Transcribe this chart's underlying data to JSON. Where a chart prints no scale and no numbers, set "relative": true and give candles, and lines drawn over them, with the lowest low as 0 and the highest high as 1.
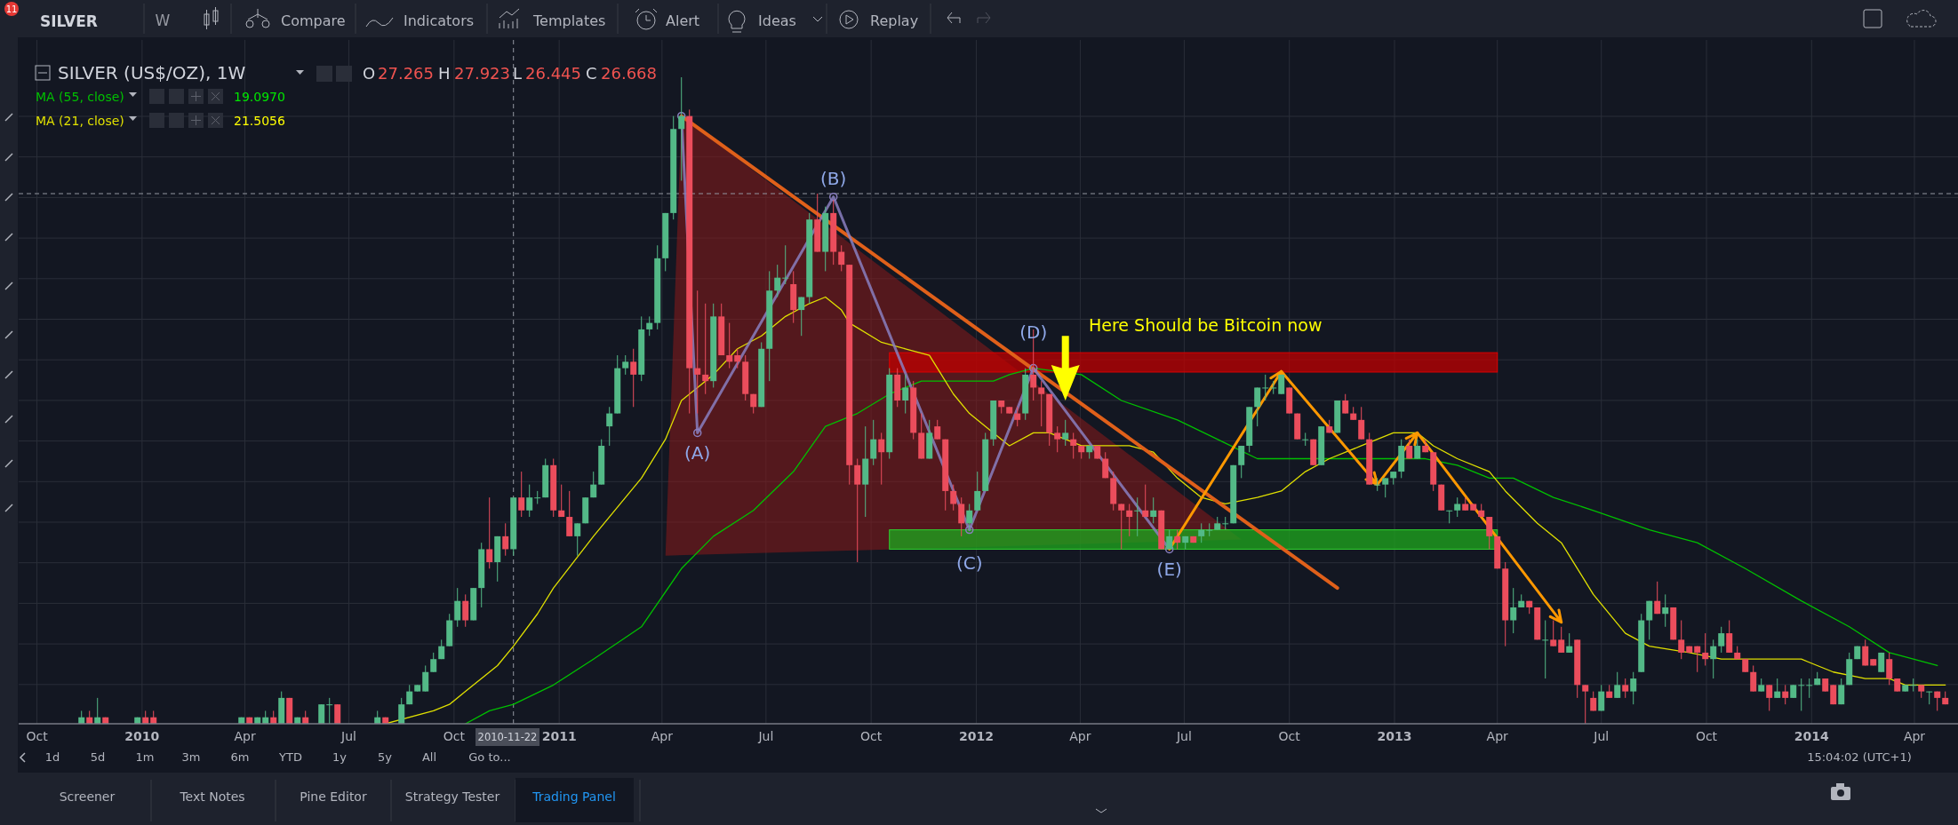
{
  "chart_data": {
    "type": "candlestick",
    "relative": true,
    "grid": true,
    "legend": "top left",
    "xlim": [
      "2009-09-15",
      "2014-05-13"
    ],
    "xticks": [
      {
        "value": "2009-10-01",
        "label": "Oct"
      },
      {
        "value": "2010-01-01",
        "label": "2010"
      },
      {
        "value": "2010-04-01",
        "label": "Apr"
      },
      {
        "value": "2010-07-01",
        "label": "Jul"
      },
      {
        "value": "2010-10-01",
        "label": "Oct"
      },
      {
        "value": "2011-01-01",
        "label": "2011"
      },
      {
        "value": "2011-04-01",
        "label": "Apr"
      },
      {
        "value": "2011-07-01",
        "label": "Jul"
      },
      {
        "value": "2011-10-01",
        "label": "Oct"
      },
      {
        "value": "2012-01-01",
        "label": "2012"
      },
      {
        "value": "2012-04-01",
        "label": "Apr"
      },
      {
        "value": "2012-07-01",
        "label": "Jul"
      },
      {
        "value": "2012-10-01",
        "label": "Oct"
      },
      {
        "value": "2013-01-01",
        "label": "2013"
      },
      {
        "value": "2013-04-01",
        "label": "Apr"
      },
      {
        "value": "2013-07-01",
        "label": "Jul"
      },
      {
        "value": "2013-10-01",
        "label": "Oct"
      },
      {
        "value": "2014-01-01",
        "label": "2014"
      },
      {
        "value": "2014-04-01",
        "label": "Apr"
      }
    ],
    "x": [
      "2009-11-09",
      "2009-11-16",
      "2009-11-23",
      "2009-11-30",
      "2009-12-28",
      "2010-01-04",
      "2010-01-11",
      "2010-03-29",
      "2010-04-05",
      "2010-04-12",
      "2010-04-19",
      "2010-04-26",
      "2010-05-03",
      "2010-05-10",
      "2010-05-17",
      "2010-05-24",
      "2010-06-07",
      "2010-06-14",
      "2010-06-21",
      "2010-07-26",
      "2010-08-02",
      "2010-08-16",
      "2010-08-23",
      "2010-08-30",
      "2010-09-06",
      "2010-09-13",
      "2010-09-20",
      "2010-09-27",
      "2010-10-04",
      "2010-10-11",
      "2010-10-18",
      "2010-10-25",
      "2010-11-01",
      "2010-11-08",
      "2010-11-15",
      "2010-11-22",
      "2010-11-29",
      "2010-12-06",
      "2010-12-13",
      "2010-12-20",
      "2010-12-27",
      "2011-01-03",
      "2011-01-10",
      "2011-01-17",
      "2011-01-24",
      "2011-01-31",
      "2011-02-07",
      "2011-02-14",
      "2011-02-21",
      "2011-02-28",
      "2011-03-07",
      "2011-03-14",
      "2011-03-21",
      "2011-03-28",
      "2011-04-04",
      "2011-04-11",
      "2011-04-18",
      "2011-04-25",
      "2011-05-02",
      "2011-05-09",
      "2011-05-16",
      "2011-05-23",
      "2011-05-30",
      "2011-06-06",
      "2011-06-13",
      "2011-06-20",
      "2011-06-27",
      "2011-07-04",
      "2011-07-11",
      "2011-07-18",
      "2011-07-25",
      "2011-08-01",
      "2011-08-08",
      "2011-08-15",
      "2011-08-22",
      "2011-08-29",
      "2011-09-05",
      "2011-09-12",
      "2011-09-19",
      "2011-09-26",
      "2011-10-03",
      "2011-10-10",
      "2011-10-17",
      "2011-10-24",
      "2011-10-31",
      "2011-11-07",
      "2011-11-14",
      "2011-11-21",
      "2011-11-28",
      "2011-12-05",
      "2011-12-12",
      "2011-12-19",
      "2011-12-26",
      "2012-01-02",
      "2012-01-09",
      "2012-01-16",
      "2012-01-23",
      "2012-01-30",
      "2012-02-06",
      "2012-02-13",
      "2012-02-20",
      "2012-02-27",
      "2012-03-05",
      "2012-03-12",
      "2012-03-19",
      "2012-03-26",
      "2012-04-02",
      "2012-04-09",
      "2012-04-16",
      "2012-04-23",
      "2012-04-30",
      "2012-05-07",
      "2012-05-14",
      "2012-05-21",
      "2012-05-28",
      "2012-06-04",
      "2012-06-11",
      "2012-06-18",
      "2012-06-25",
      "2012-07-02",
      "2012-07-09",
      "2012-07-16",
      "2012-07-23",
      "2012-07-30",
      "2012-08-06",
      "2012-08-13",
      "2012-08-20",
      "2012-08-27",
      "2012-09-03",
      "2012-09-10",
      "2012-09-17",
      "2012-09-24",
      "2012-10-01",
      "2012-10-08",
      "2012-10-15",
      "2012-10-22",
      "2012-10-29",
      "2012-11-05",
      "2012-11-12",
      "2012-11-19",
      "2012-11-26",
      "2012-12-03",
      "2012-12-10",
      "2012-12-17",
      "2012-12-24",
      "2012-12-31",
      "2013-01-07",
      "2013-01-14",
      "2013-01-21",
      "2013-01-28",
      "2013-02-04",
      "2013-02-11",
      "2013-02-18",
      "2013-02-25",
      "2013-03-04",
      "2013-03-11",
      "2013-03-18",
      "2013-03-25",
      "2013-04-01",
      "2013-04-08",
      "2013-04-15",
      "2013-04-22",
      "2013-04-29",
      "2013-05-06",
      "2013-05-13",
      "2013-05-20",
      "2013-05-27",
      "2013-06-03",
      "2013-06-10",
      "2013-06-17",
      "2013-06-24",
      "2013-07-01",
      "2013-07-08",
      "2013-07-15",
      "2013-07-22",
      "2013-07-29",
      "2013-08-05",
      "2013-08-12",
      "2013-08-19",
      "2013-08-26",
      "2013-09-02",
      "2013-09-09",
      "2013-09-16",
      "2013-09-23",
      "2013-09-30",
      "2013-10-07",
      "2013-10-14",
      "2013-10-21",
      "2013-10-28",
      "2013-11-04",
      "2013-11-11",
      "2013-11-18",
      "2013-11-25",
      "2013-12-02",
      "2013-12-09",
      "2013-12-16",
      "2013-12-23",
      "2013-12-30",
      "2014-01-06",
      "2014-01-13",
      "2014-01-20",
      "2014-01-27",
      "2014-02-03",
      "2014-02-10",
      "2014-02-17",
      "2014-02-24",
      "2014-03-03",
      "2014-03-10",
      "2014-03-17",
      "2014-03-24",
      "2014-03-31",
      "2014-04-07",
      "2014-04-14",
      "2014-04-21",
      "2014-04-28"
    ],
    "ohlc": [
      [
        0,
        0.02,
        0,
        0.01
      ],
      [
        0.01,
        0.02,
        0,
        0
      ],
      [
        0,
        0.04,
        0,
        0.01
      ],
      [
        0.01,
        0.01,
        0,
        0
      ],
      [
        0,
        0.01,
        0,
        0.01
      ],
      [
        0.01,
        0.02,
        0,
        0
      ],
      [
        0.01,
        0.02,
        0,
        0
      ],
      [
        0,
        0.01,
        0,
        0.01
      ],
      [
        0.01,
        0.01,
        0,
        0
      ],
      [
        0,
        0.01,
        0,
        0.01
      ],
      [
        0,
        0.02,
        0,
        0.01
      ],
      [
        0.01,
        0.02,
        0,
        0
      ],
      [
        0,
        0.05,
        0,
        0.04
      ],
      [
        0.04,
        0.04,
        0,
        0
      ],
      [
        0,
        0.01,
        0,
        0.01
      ],
      [
        0.01,
        0.02,
        0,
        0
      ],
      [
        0,
        0.03,
        0,
        0.03
      ],
      [
        0.03,
        0.04,
        0,
        0.03
      ],
      [
        0.03,
        0.03,
        0,
        0
      ],
      [
        0,
        0.02,
        0,
        0.01
      ],
      [
        0.01,
        0.01,
        0,
        0
      ],
      [
        0,
        0.04,
        0,
        0.03
      ],
      [
        0.03,
        0.06,
        0.03,
        0.05
      ],
      [
        0.05,
        0.06,
        0.05,
        0.06
      ],
      [
        0.05,
        0.09,
        0.05,
        0.08
      ],
      [
        0.08,
        0.11,
        0.08,
        0.1
      ],
      [
        0.1,
        0.13,
        0.1,
        0.12
      ],
      [
        0.12,
        0.17,
        0.12,
        0.16
      ],
      [
        0.16,
        0.21,
        0.15,
        0.19
      ],
      [
        0.19,
        0.2,
        0.15,
        0.16
      ],
      [
        0.16,
        0.21,
        0.16,
        0.21
      ],
      [
        0.21,
        0.28,
        0.18,
        0.27
      ],
      [
        0.27,
        0.35,
        0.24,
        0.25
      ],
      [
        0.25,
        0.29,
        0.22,
        0.29
      ],
      [
        0.29,
        0.31,
        0.26,
        0.27
      ],
      [
        0.27,
        0.35,
        0.26,
        0.35
      ],
      [
        0.35,
        0.39,
        0.32,
        0.33
      ],
      [
        0.33,
        0.37,
        0.32,
        0.35
      ],
      [
        0.35,
        0.36,
        0.34,
        0.35
      ],
      [
        0.35,
        0.41,
        0.35,
        0.4
      ],
      [
        0.4,
        0.41,
        0.32,
        0.33
      ],
      [
        0.33,
        0.37,
        0.32,
        0.32
      ],
      [
        0.32,
        0.36,
        0.29,
        0.29
      ],
      [
        0.29,
        0.31,
        0.26,
        0.31
      ],
      [
        0.31,
        0.35,
        0.31,
        0.35
      ],
      [
        0.35,
        0.39,
        0.35,
        0.37
      ],
      [
        0.37,
        0.44,
        0.37,
        0.43
      ],
      [
        0.46,
        0.49,
        0.43,
        0.48
      ],
      [
        0.48,
        0.57,
        0.48,
        0.55
      ],
      [
        0.55,
        0.57,
        0.54,
        0.56
      ],
      [
        0.56,
        0.58,
        0.49,
        0.54
      ],
      [
        0.54,
        0.63,
        0.53,
        0.61
      ],
      [
        0.61,
        0.63,
        0.6,
        0.62
      ],
      [
        0.62,
        0.74,
        0.61,
        0.72
      ],
      [
        0.72,
        0.79,
        0.7,
        0.79
      ],
      [
        0.79,
        0.94,
        0.78,
        0.92
      ],
      [
        0.92,
        1,
        0.84,
        0.94
      ],
      [
        0.94,
        0.95,
        0.48,
        0.55
      ],
      [
        0.55,
        0.67,
        0.48,
        0.54
      ],
      [
        0.54,
        0.65,
        0.51,
        0.53
      ],
      [
        0.53,
        0.65,
        0.52,
        0.63
      ],
      [
        0.63,
        0.65,
        0.57,
        0.57
      ],
      [
        0.57,
        0.62,
        0.55,
        0.56
      ],
      [
        0.57,
        0.58,
        0.55,
        0.56
      ],
      [
        0.56,
        0.57,
        0.5,
        0.51
      ],
      [
        0.51,
        0.51,
        0.48,
        0.49
      ],
      [
        0.49,
        0.59,
        0.49,
        0.58
      ],
      [
        0.58,
        0.7,
        0.53,
        0.67
      ],
      [
        0.67,
        0.71,
        0.66,
        0.69
      ],
      [
        0.69,
        0.74,
        0.68,
        0.69
      ],
      [
        0.68,
        0.7,
        0.62,
        0.64
      ],
      [
        0.64,
        0.66,
        0.6,
        0.66
      ],
      [
        0.66,
        0.79,
        0.65,
        0.78
      ],
      [
        0.78,
        0.82,
        0.73,
        0.73
      ],
      [
        0.73,
        0.8,
        0.7,
        0.79
      ],
      [
        0.79,
        0.81,
        0.71,
        0.73
      ],
      [
        0.73,
        0.74,
        0.7,
        0.71
      ],
      [
        0.71,
        0.71,
        0.37,
        0.4
      ],
      [
        0.4,
        0.41,
        0.25,
        0.37
      ],
      [
        0.37,
        0.46,
        0.32,
        0.41
      ],
      [
        0.41,
        0.47,
        0.4,
        0.44
      ],
      [
        0.44,
        0.45,
        0.37,
        0.42
      ],
      [
        0.42,
        0.55,
        0.41,
        0.54
      ],
      [
        0.54,
        0.55,
        0.49,
        0.5
      ],
      [
        0.5,
        0.54,
        0.48,
        0.52
      ],
      [
        0.52,
        0.53,
        0.44,
        0.45
      ],
      [
        0.45,
        0.48,
        0.41,
        0.41
      ],
      [
        0.41,
        0.47,
        0.41,
        0.45
      ],
      [
        0.46,
        0.47,
        0.44,
        0.44
      ],
      [
        0.44,
        0.44,
        0.33,
        0.36
      ],
      [
        0.36,
        0.37,
        0.33,
        0.34
      ],
      [
        0.34,
        0.35,
        0.29,
        0.31
      ],
      [
        0.31,
        0.34,
        0.3,
        0.33
      ],
      [
        0.33,
        0.39,
        0.33,
        0.36
      ],
      [
        0.36,
        0.45,
        0.36,
        0.44
      ],
      [
        0.44,
        0.5,
        0.43,
        0.5
      ],
      [
        0.5,
        0.5,
        0.48,
        0.49
      ],
      [
        0.49,
        0.49,
        0.48,
        0.48
      ],
      [
        0.48,
        0.49,
        0.46,
        0.47
      ],
      [
        0.48,
        0.55,
        0.47,
        0.54
      ],
      [
        0.54,
        0.61,
        0.5,
        0.52
      ],
      [
        0.52,
        0.53,
        0.46,
        0.51
      ],
      [
        0.51,
        0.51,
        0.43,
        0.45
      ],
      [
        0.45,
        0.46,
        0.42,
        0.44
      ],
      [
        0.44,
        0.47,
        0.43,
        0.45
      ],
      [
        0.44,
        0.45,
        0.41,
        0.43
      ],
      [
        0.43,
        0.43,
        0.41,
        0.42
      ],
      [
        0.42,
        0.43,
        0.41,
        0.43
      ],
      [
        0.43,
        0.43,
        0.41,
        0.41
      ],
      [
        0.41,
        0.42,
        0.38,
        0.38
      ],
      [
        0.38,
        0.39,
        0.33,
        0.34
      ],
      [
        0.34,
        0.34,
        0.27,
        0.33
      ],
      [
        0.33,
        0.34,
        0.29,
        0.32
      ],
      [
        0.33,
        0.35,
        0.29,
        0.33
      ],
      [
        0.33,
        0.37,
        0.32,
        0.32
      ],
      [
        0.32,
        0.35,
        0.31,
        0.33
      ],
      [
        0.33,
        0.33,
        0.27,
        0.27
      ],
      [
        0.27,
        0.3,
        0.27,
        0.29
      ],
      [
        0.29,
        0.3,
        0.27,
        0.28
      ],
      [
        0.28,
        0.29,
        0.27,
        0.29
      ],
      [
        0.29,
        0.29,
        0.28,
        0.28
      ],
      [
        0.29,
        0.31,
        0.28,
        0.3
      ],
      [
        0.3,
        0.31,
        0.29,
        0.3
      ],
      [
        0.3,
        0.32,
        0.3,
        0.31
      ],
      [
        0.31,
        0.32,
        0.3,
        0.31
      ],
      [
        0.31,
        0.4,
        0.31,
        0.4
      ],
      [
        0.4,
        0.43,
        0.38,
        0.43
      ],
      [
        0.43,
        0.49,
        0.42,
        0.49
      ],
      [
        0.49,
        0.52,
        0.46,
        0.52
      ],
      [
        0.52,
        0.54,
        0.5,
        0.52
      ],
      [
        0.52,
        0.53,
        0.51,
        0.52
      ],
      [
        0.51,
        0.54,
        0.51,
        0.54
      ],
      [
        0.52,
        0.52,
        0.48,
        0.48
      ],
      [
        0.48,
        0.48,
        0.44,
        0.44
      ],
      [
        0.44,
        0.45,
        0.43,
        0.44
      ],
      [
        0.44,
        0.44,
        0.4,
        0.4
      ],
      [
        0.4,
        0.46,
        0.4,
        0.46
      ],
      [
        0.46,
        0.47,
        0.45,
        0.45
      ],
      [
        0.45,
        0.5,
        0.45,
        0.5
      ],
      [
        0.5,
        0.51,
        0.48,
        0.48
      ],
      [
        0.48,
        0.49,
        0.47,
        0.47
      ],
      [
        0.47,
        0.49,
        0.44,
        0.44
      ],
      [
        0.44,
        0.45,
        0.37,
        0.37
      ],
      [
        0.37,
        0.38,
        0.36,
        0.37
      ],
      [
        0.37,
        0.38,
        0.35,
        0.38
      ],
      [
        0.38,
        0.39,
        0.37,
        0.39
      ],
      [
        0.39,
        0.44,
        0.38,
        0.43
      ],
      [
        0.43,
        0.44,
        0.41,
        0.41
      ],
      [
        0.41,
        0.44,
        0.41,
        0.43
      ],
      [
        0.43,
        0.44,
        0.42,
        0.42
      ],
      [
        0.42,
        0.42,
        0.36,
        0.37
      ],
      [
        0.37,
        0.37,
        0.33,
        0.33
      ],
      [
        0.33,
        0.33,
        0.31,
        0.33
      ],
      [
        0.33,
        0.35,
        0.32,
        0.34
      ],
      [
        0.34,
        0.35,
        0.33,
        0.33
      ],
      [
        0.34,
        0.34,
        0.33,
        0.33
      ],
      [
        0.33,
        0.34,
        0.32,
        0.32
      ],
      [
        0.32,
        0.32,
        0.27,
        0.29
      ],
      [
        0.29,
        0.29,
        0.24,
        0.24
      ],
      [
        0.24,
        0.25,
        0.12,
        0.16
      ],
      [
        0.16,
        0.21,
        0.14,
        0.18
      ],
      [
        0.18,
        0.2,
        0.18,
        0.19
      ],
      [
        0.19,
        0.19,
        0.17,
        0.18
      ],
      [
        0.18,
        0.18,
        0.13,
        0.13
      ],
      [
        0.13,
        0.16,
        0.07,
        0.13
      ],
      [
        0.13,
        0.16,
        0.12,
        0.12
      ],
      [
        0.13,
        0.15,
        0.11,
        0.11
      ],
      [
        0.11,
        0.14,
        0.11,
        0.12
      ],
      [
        0.13,
        0.13,
        0.04,
        0.06
      ],
      [
        0.06,
        0.06,
        0,
        0.05
      ],
      [
        0.04,
        0.05,
        0.02,
        0.02
      ],
      [
        0.02,
        0.06,
        0.02,
        0.05
      ],
      [
        0.05,
        0.06,
        0.04,
        0.04
      ],
      [
        0.04,
        0.08,
        0.04,
        0.06
      ],
      [
        0.06,
        0.07,
        0.04,
        0.05
      ],
      [
        0.05,
        0.08,
        0.03,
        0.07
      ],
      [
        0.08,
        0.17,
        0.08,
        0.16
      ],
      [
        0.16,
        0.19,
        0.13,
        0.19
      ],
      [
        0.19,
        0.22,
        0.17,
        0.17
      ],
      [
        0.17,
        0.2,
        0.15,
        0.18
      ],
      [
        0.18,
        0.18,
        0.13,
        0.13
      ],
      [
        0.13,
        0.16,
        0.1,
        0.11
      ],
      [
        0.12,
        0.12,
        0.11,
        0.11
      ],
      [
        0.12,
        0.12,
        0.08,
        0.11
      ],
      [
        0.11,
        0.14,
        0.09,
        0.1
      ],
      [
        0.1,
        0.13,
        0.07,
        0.12
      ],
      [
        0.12,
        0.15,
        0.11,
        0.14
      ],
      [
        0.14,
        0.16,
        0.11,
        0.11
      ],
      [
        0.11,
        0.12,
        0.1,
        0.1
      ],
      [
        0.1,
        0.1,
        0.08,
        0.08
      ],
      [
        0.08,
        0.09,
        0.05,
        0.05
      ],
      [
        0.05,
        0.07,
        0.05,
        0.06
      ],
      [
        0.06,
        0.06,
        0.02,
        0.04
      ],
      [
        0.04,
        0.07,
        0.04,
        0.05
      ],
      [
        0.05,
        0.06,
        0.03,
        0.04
      ],
      [
        0.04,
        0.06,
        0.04,
        0.06
      ],
      [
        0.06,
        0.07,
        0.02,
        0.06
      ],
      [
        0.06,
        0.07,
        0.04,
        0.06
      ],
      [
        0.06,
        0.08,
        0.06,
        0.07
      ],
      [
        0.07,
        0.07,
        0.05,
        0.05
      ],
      [
        0.06,
        0.06,
        0.03,
        0.03
      ],
      [
        0.03,
        0.07,
        0.03,
        0.06
      ],
      [
        0.06,
        0.11,
        0.06,
        0.1
      ],
      [
        0.1,
        0.12,
        0.1,
        0.12
      ],
      [
        0.12,
        0.13,
        0.09,
        0.09
      ],
      [
        0.1,
        0.1,
        0.09,
        0.09
      ],
      [
        0.08,
        0.11,
        0.08,
        0.11
      ],
      [
        0.1,
        0.11,
        0.06,
        0.07
      ],
      [
        0.07,
        0.07,
        0.05,
        0.05
      ],
      [
        0.05,
        0.06,
        0.05,
        0.06
      ],
      [
        0.06,
        0.07,
        0.05,
        0.06
      ],
      [
        0.06,
        0.06,
        0.04,
        0.05
      ],
      [
        0.05,
        0.05,
        0.03,
        0.05
      ],
      [
        0.05,
        0.05,
        0.02,
        0.04
      ],
      [
        0.04,
        0.05,
        0.03,
        0.03
      ]
    ],
    "series": [
      {
        "type": "line",
        "name": "MA (55, close)",
        "color": "#00c000",
        "x": [
          "2010-10-11",
          "2010-11-01",
          "2010-11-22",
          "2010-12-27",
          "2011-01-31",
          "2011-03-14",
          "2011-04-18",
          "2011-05-16",
          "2011-06-20",
          "2011-07-25",
          "2011-08-22",
          "2011-09-19",
          "2011-10-17",
          "2011-11-14",
          "2012-01-16",
          "2012-01-30",
          "2012-02-20",
          "2012-04-02",
          "2012-05-07",
          "2012-06-25",
          "2012-07-30",
          "2012-09-03",
          "2012-10-08",
          "2012-11-19",
          "2012-12-24",
          "2013-01-28",
          "2013-02-25",
          "2013-03-25",
          "2013-04-15",
          "2013-05-20",
          "2013-06-24",
          "2013-08-12",
          "2013-09-23",
          "2013-11-04",
          "2013-12-23",
          "2014-02-03",
          "2014-03-10",
          "2014-04-21"
        ],
        "values": [
          0,
          0.02,
          0.03,
          0.06,
          0.1,
          0.15,
          0.24,
          0.29,
          0.33,
          0.39,
          0.46,
          0.48,
          0.51,
          0.53,
          0.53,
          0.54,
          0.55,
          0.54,
          0.5,
          0.47,
          0.44,
          0.41,
          0.41,
          0.41,
          0.41,
          0.41,
          0.4,
          0.38,
          0.38,
          0.35,
          0.33,
          0.3,
          0.28,
          0.24,
          0.19,
          0.15,
          0.11,
          0.09
        ]
      },
      {
        "type": "line",
        "name": "MA (21, close)",
        "color": "#e0e000",
        "x": [
          "2010-08-02",
          "2010-09-13",
          "2010-09-27",
          "2010-10-11",
          "2010-10-25",
          "2010-11-08",
          "2010-11-22",
          "2010-12-13",
          "2010-12-27",
          "2011-01-31",
          "2011-03-14",
          "2011-04-04",
          "2011-04-18",
          "2011-05-02",
          "2011-05-16",
          "2011-06-06",
          "2011-06-27",
          "2011-07-18",
          "2011-08-08",
          "2011-08-22",
          "2011-09-05",
          "2011-09-12",
          "2011-10-10",
          "2011-10-31",
          "2011-11-21",
          "2011-11-28",
          "2011-12-12",
          "2011-12-26",
          "2012-01-16",
          "2012-01-30",
          "2012-02-20",
          "2012-03-05",
          "2012-04-02",
          "2012-05-14",
          "2012-06-04",
          "2012-06-25",
          "2012-07-16",
          "2012-08-06",
          "2012-09-03",
          "2012-09-24",
          "2012-10-15",
          "2012-11-05",
          "2012-12-03",
          "2012-12-31",
          "2013-01-21",
          "2013-02-04",
          "2013-02-25",
          "2013-03-25",
          "2013-04-08",
          "2013-05-06",
          "2013-05-27",
          "2013-06-24",
          "2013-07-22",
          "2013-08-12",
          "2013-09-16",
          "2013-10-14",
          "2013-12-23",
          "2014-01-20",
          "2014-02-17",
          "2014-03-10",
          "2014-03-24",
          "2014-04-28"
        ],
        "values": [
          0,
          0.02,
          0.03,
          0.05,
          0.07,
          0.09,
          0.12,
          0.17,
          0.21,
          0.29,
          0.38,
          0.44,
          0.5,
          0.52,
          0.54,
          0.58,
          0.6,
          0.63,
          0.65,
          0.66,
          0.64,
          0.62,
          0.59,
          0.58,
          0.57,
          0.55,
          0.51,
          0.48,
          0.45,
          0.43,
          0.45,
          0.45,
          0.43,
          0.43,
          0.42,
          0.38,
          0.35,
          0.34,
          0.35,
          0.36,
          0.39,
          0.41,
          0.43,
          0.45,
          0.45,
          0.43,
          0.41,
          0.39,
          0.36,
          0.31,
          0.28,
          0.2,
          0.14,
          0.12,
          0.11,
          0.1,
          0.1,
          0.08,
          0.07,
          0.07,
          0.06,
          0.06
        ]
      },
      {
        "type": "line",
        "color": "#e0601a",
        "x": [
          "2011-04-18",
          "2012-11-12"
        ],
        "values": [
          0.94,
          0.21
        ]
      }
    ],
    "ref_lines": [
      {
        "axis": "x",
        "value": "2010-11-22",
        "color": "#9598a1",
        "line_style": "dashed"
      },
      {
        "axis": "y",
        "value": 0.82,
        "color": "#9598a1",
        "line_style": "dashed"
      }
    ],
    "annotations": [
      "11",
      "SILVER",
      "W",
      "Compare",
      "Indicators",
      "Templates",
      "Alert",
      "Ideas",
      "Replay",
      "SILVER (US$/OZ), 1W",
      "O",
      "27.265",
      "H",
      "27.923",
      "L",
      "26.445",
      "C",
      "26.668",
      "19.0970",
      "21.5056",
      "1d",
      "5d",
      "1m",
      "3m",
      "6m",
      "YTD",
      "1y",
      "5y",
      "All",
      "Go to...",
      "2010-11-22",
      "15:04:02 (UTC+1)",
      "Screener",
      "Text Notes",
      "Pine Editor",
      "Strategy Tester",
      "Trading Panel",
      "Here Should be Bitcoin now",
      {
        "text": "(A)",
        "x": "2011-05-02",
        "y": 0.45
      },
      {
        "text": "(B)",
        "x": "2011-08-29",
        "y": 0.815
      },
      {
        "text": "(C)",
        "x": "2011-12-26",
        "y": 0.3
      },
      {
        "text": "(D)",
        "x": "2012-02-20",
        "y": 0.55
      },
      {
        "text": "(E)",
        "x": "2012-06-18",
        "y": 0.27
      }
    ]
  }
}
